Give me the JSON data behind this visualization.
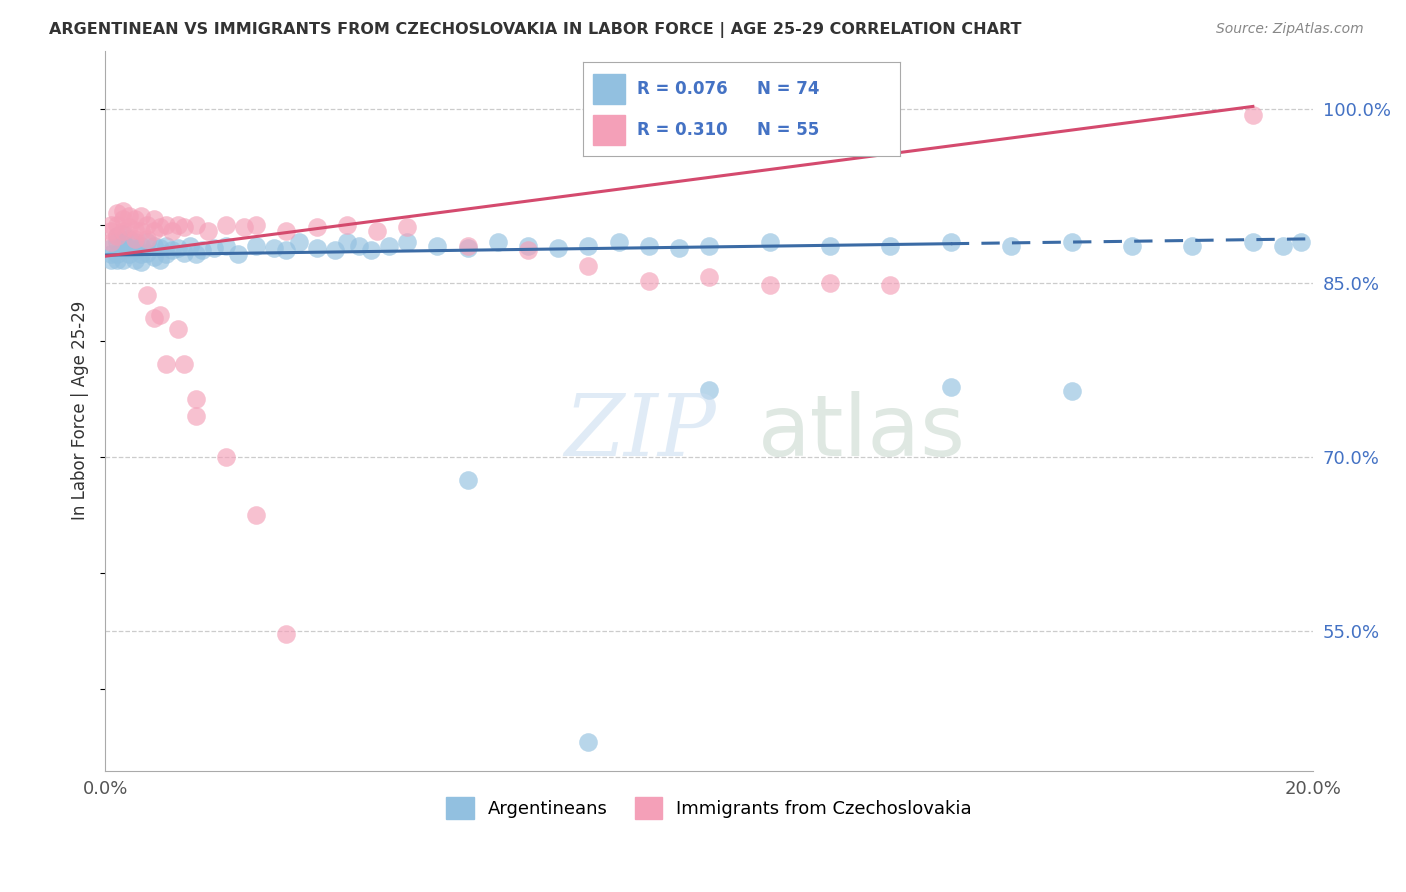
{
  "title": "ARGENTINEAN VS IMMIGRANTS FROM CZECHOSLOVAKIA IN LABOR FORCE | AGE 25-29 CORRELATION CHART",
  "source": "Source: ZipAtlas.com",
  "ylabel": "In Labor Force | Age 25-29",
  "xlim": [
    0.0,
    0.2
  ],
  "ylim": [
    0.43,
    1.05
  ],
  "xticks": [
    0.0,
    0.04,
    0.08,
    0.12,
    0.16,
    0.2
  ],
  "yticks": [
    0.55,
    0.7,
    0.85,
    1.0
  ],
  "yticklabels": [
    "55.0%",
    "70.0%",
    "85.0%",
    "100.0%"
  ],
  "blue_R": 0.076,
  "blue_N": 74,
  "pink_R": 0.31,
  "pink_N": 55,
  "blue_color": "#92C0E0",
  "pink_color": "#F4A0B8",
  "blue_line_color": "#3B6BA5",
  "pink_line_color": "#D44A6E",
  "blue_scatter_x": [
    0.001,
    0.001,
    0.001,
    0.002,
    0.002,
    0.002,
    0.002,
    0.003,
    0.003,
    0.003,
    0.003,
    0.004,
    0.004,
    0.004,
    0.005,
    0.005,
    0.005,
    0.006,
    0.006,
    0.006,
    0.007,
    0.007,
    0.008,
    0.008,
    0.009,
    0.009,
    0.01,
    0.01,
    0.011,
    0.012,
    0.013,
    0.014,
    0.015,
    0.016,
    0.018,
    0.02,
    0.022,
    0.025,
    0.028,
    0.03,
    0.032,
    0.035,
    0.038,
    0.04,
    0.042,
    0.044,
    0.047,
    0.05,
    0.055,
    0.06,
    0.065,
    0.07,
    0.075,
    0.08,
    0.085,
    0.09,
    0.095,
    0.1,
    0.11,
    0.12,
    0.13,
    0.14,
    0.15,
    0.16,
    0.17,
    0.18,
    0.19,
    0.195,
    0.198,
    0.1,
    0.14,
    0.16,
    0.06,
    0.08
  ],
  "blue_scatter_y": [
    0.88,
    0.875,
    0.87,
    0.89,
    0.885,
    0.875,
    0.87,
    0.892,
    0.885,
    0.878,
    0.87,
    0.888,
    0.88,
    0.875,
    0.885,
    0.878,
    0.87,
    0.882,
    0.875,
    0.868,
    0.885,
    0.876,
    0.882,
    0.872,
    0.88,
    0.87,
    0.882,
    0.875,
    0.878,
    0.88,
    0.876,
    0.882,
    0.875,
    0.878,
    0.88,
    0.882,
    0.875,
    0.882,
    0.88,
    0.878,
    0.885,
    0.88,
    0.878,
    0.885,
    0.882,
    0.878,
    0.882,
    0.885,
    0.882,
    0.88,
    0.885,
    0.882,
    0.88,
    0.882,
    0.885,
    0.882,
    0.88,
    0.882,
    0.885,
    0.882,
    0.882,
    0.885,
    0.882,
    0.885,
    0.882,
    0.882,
    0.885,
    0.882,
    0.885,
    0.758,
    0.76,
    0.757,
    0.68,
    0.455
  ],
  "pink_scatter_x": [
    0.001,
    0.001,
    0.001,
    0.002,
    0.002,
    0.002,
    0.003,
    0.003,
    0.003,
    0.004,
    0.004,
    0.005,
    0.005,
    0.005,
    0.006,
    0.006,
    0.007,
    0.007,
    0.008,
    0.008,
    0.009,
    0.01,
    0.011,
    0.012,
    0.013,
    0.015,
    0.017,
    0.02,
    0.023,
    0.025,
    0.03,
    0.035,
    0.04,
    0.045,
    0.05,
    0.06,
    0.07,
    0.08,
    0.09,
    0.1,
    0.11,
    0.12,
    0.13,
    0.007,
    0.009,
    0.012,
    0.015,
    0.02,
    0.025,
    0.01,
    0.008,
    0.013,
    0.015,
    0.19,
    0.03
  ],
  "pink_scatter_y": [
    0.9,
    0.895,
    0.885,
    0.91,
    0.9,
    0.89,
    0.912,
    0.905,
    0.895,
    0.908,
    0.898,
    0.905,
    0.896,
    0.888,
    0.908,
    0.895,
    0.9,
    0.888,
    0.905,
    0.895,
    0.898,
    0.9,
    0.895,
    0.9,
    0.898,
    0.9,
    0.895,
    0.9,
    0.898,
    0.9,
    0.895,
    0.898,
    0.9,
    0.895,
    0.898,
    0.882,
    0.878,
    0.865,
    0.852,
    0.855,
    0.848,
    0.85,
    0.848,
    0.84,
    0.822,
    0.81,
    0.75,
    0.7,
    0.65,
    0.78,
    0.82,
    0.78,
    0.735,
    0.995,
    0.548
  ]
}
